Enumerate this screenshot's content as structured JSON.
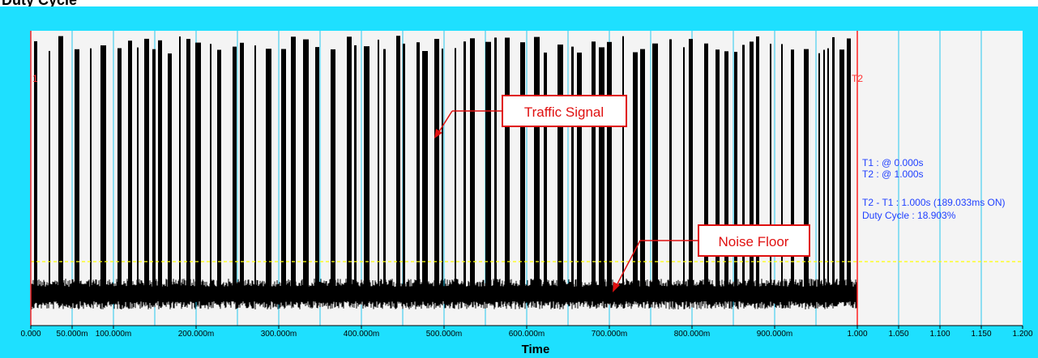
{
  "header": {
    "title": "Duty Cycle"
  },
  "chart_data": {
    "type": "line",
    "xlabel": "Time",
    "ylabel": "",
    "xlim": [
      0,
      1.2
    ],
    "x_ticks": [
      {
        "value": 0.0,
        "label": "0.000"
      },
      {
        "value": 0.05,
        "label": "50.000m"
      },
      {
        "value": 0.1,
        "label": "100.000m"
      },
      {
        "value": 0.2,
        "label": "200.000m"
      },
      {
        "value": 0.3,
        "label": "300.000m"
      },
      {
        "value": 0.4,
        "label": "400.000m"
      },
      {
        "value": 0.5,
        "label": "500.000m"
      },
      {
        "value": 0.6,
        "label": "600.000m"
      },
      {
        "value": 0.7,
        "label": "700.000m"
      },
      {
        "value": 0.8,
        "label": "800.000m"
      },
      {
        "value": 0.9,
        "label": "900.000m"
      },
      {
        "value": 1.0,
        "label": "1.000"
      },
      {
        "value": 1.05,
        "label": "1.050"
      },
      {
        "value": 1.1,
        "label": "1.100"
      },
      {
        "value": 1.15,
        "label": "1.150"
      },
      {
        "value": 1.2,
        "label": "1.200"
      }
    ],
    "grid_lines_x": [
      0.05,
      0.1,
      0.15,
      0.2,
      0.25,
      0.3,
      0.35,
      0.4,
      0.45,
      0.5,
      0.55,
      0.6,
      0.65,
      0.7,
      0.75,
      0.8,
      0.85,
      0.9,
      0.95,
      1.0,
      1.05,
      1.1,
      1.15
    ],
    "threshold_line": {
      "color": "#ffff00",
      "style": "dashed"
    },
    "signal_end": 1.0,
    "cursors": [
      {
        "name": "T1",
        "time": 0.0,
        "label": "1",
        "color": "#ff2020"
      },
      {
        "name": "T2",
        "time": 1.0,
        "label": "T2",
        "color": "#ff2020"
      }
    ],
    "readouts": [
      "T1 : @ 0.000s",
      "T2 : @ 1.000s",
      "T2 - T1 : 1.000s (189.033ms ON)",
      "Duty Cycle : 18.903%"
    ],
    "duty_cycle_percent": 18.903,
    "on_time_ms": 189.033,
    "annotations": [
      {
        "text": "Traffic Signal"
      },
      {
        "text": "Noise Floor"
      }
    ]
  },
  "colors": {
    "panel_bg": "#1ee0ff",
    "plot_bg": "#f4f4f4",
    "signal": "#000000",
    "grid": "#26c8ee",
    "cursor": "#ff2020",
    "readout": "#2040ff",
    "callout": "#e01010"
  }
}
